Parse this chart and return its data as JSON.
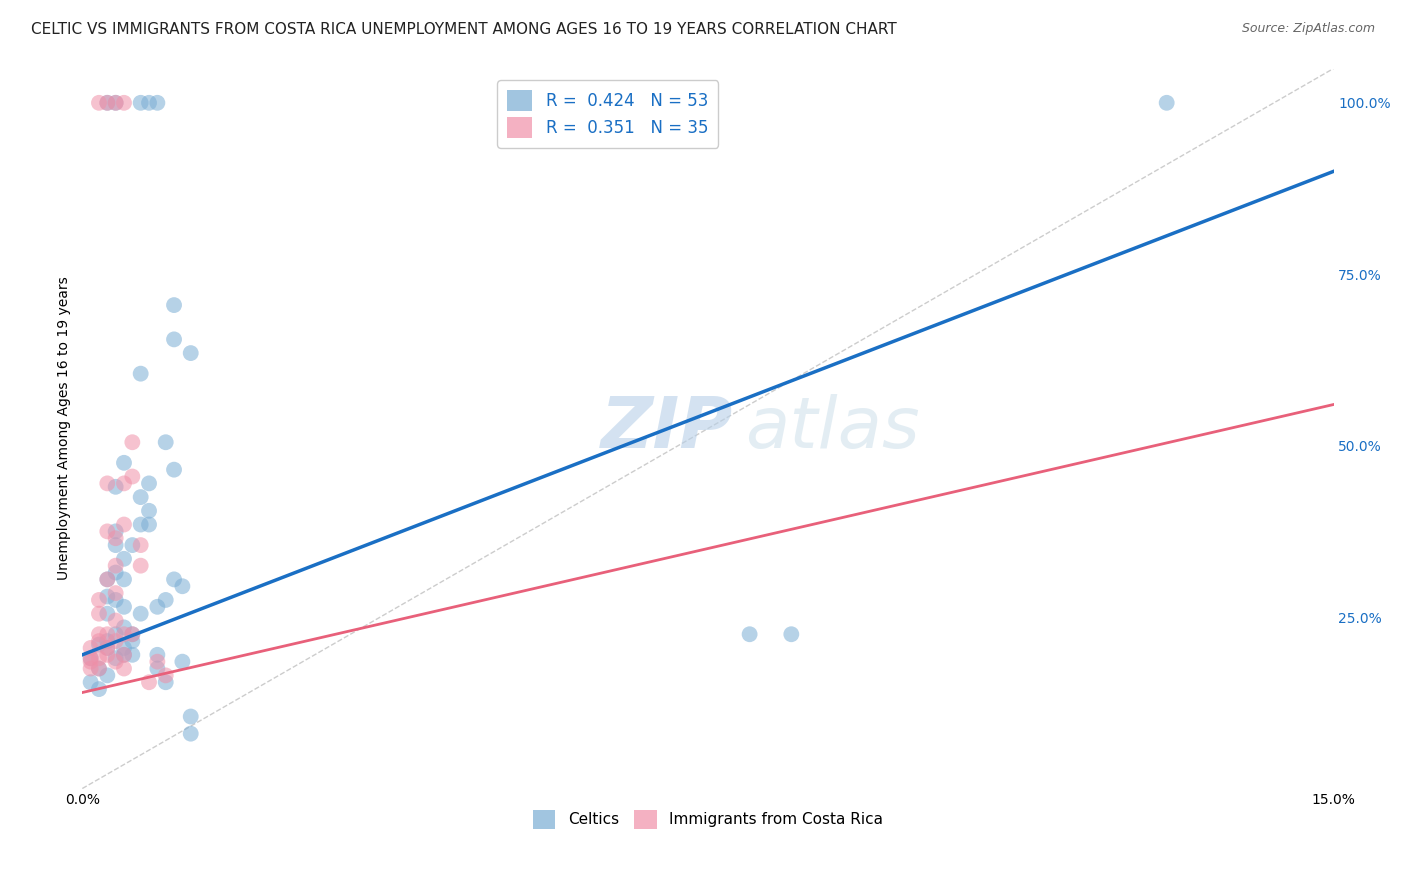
{
  "title": "CELTIC VS IMMIGRANTS FROM COSTA RICA UNEMPLOYMENT AMONG AGES 16 TO 19 YEARS CORRELATION CHART",
  "source": "Source: ZipAtlas.com",
  "ylabel": "Unemployment Among Ages 16 to 19 years",
  "xmin": 0.0,
  "xmax": 0.15,
  "ymin": 0.0,
  "ymax": 1.05,
  "ytick_labels": [
    "25.0%",
    "50.0%",
    "75.0%",
    "100.0%"
  ],
  "ytick_values": [
    0.25,
    0.5,
    0.75,
    1.0
  ],
  "watermark_zip": "ZIP",
  "watermark_atlas": "atlas",
  "celtics_color": "#7aadd4",
  "immigrants_color": "#f090a8",
  "trendline_celtics_color": "#1a6fc4",
  "trendline_immigrants_color": "#e8607a",
  "diagonal_color": "#c0c0c0",
  "celtics_R": 0.424,
  "celtics_N": 53,
  "immigrants_R": 0.351,
  "immigrants_N": 35,
  "grid_color": "#d8d8d8",
  "background_color": "#ffffff",
  "title_fontsize": 11,
  "axis_label_fontsize": 10,
  "tick_fontsize": 10,
  "legend_fontsize": 12,
  "right_ytick_color": "#1a6fc4",
  "celtics_trend_x0": 0.0,
  "celtics_trend_y0": 0.195,
  "celtics_trend_x1": 0.15,
  "celtics_trend_y1": 0.9,
  "immigrants_trend_x0": 0.0,
  "immigrants_trend_y0": 0.14,
  "immigrants_trend_x1": 0.15,
  "immigrants_trend_y1": 0.56,
  "celtics_points": [
    [
      0.001,
      0.19
    ],
    [
      0.002,
      0.21
    ],
    [
      0.002,
      0.175
    ],
    [
      0.003,
      0.205
    ],
    [
      0.003,
      0.215
    ],
    [
      0.003,
      0.255
    ],
    [
      0.003,
      0.28
    ],
    [
      0.003,
      0.305
    ],
    [
      0.004,
      0.19
    ],
    [
      0.004,
      0.225
    ],
    [
      0.004,
      0.275
    ],
    [
      0.004,
      0.315
    ],
    [
      0.004,
      0.355
    ],
    [
      0.004,
      0.375
    ],
    [
      0.004,
      0.44
    ],
    [
      0.005,
      0.195
    ],
    [
      0.005,
      0.205
    ],
    [
      0.005,
      0.235
    ],
    [
      0.005,
      0.265
    ],
    [
      0.005,
      0.305
    ],
    [
      0.005,
      0.335
    ],
    [
      0.005,
      0.475
    ],
    [
      0.006,
      0.195
    ],
    [
      0.006,
      0.215
    ],
    [
      0.006,
      0.225
    ],
    [
      0.006,
      0.355
    ],
    [
      0.007,
      0.255
    ],
    [
      0.007,
      0.385
    ],
    [
      0.007,
      0.425
    ],
    [
      0.007,
      0.605
    ],
    [
      0.008,
      0.385
    ],
    [
      0.008,
      0.405
    ],
    [
      0.008,
      0.445
    ],
    [
      0.009,
      0.175
    ],
    [
      0.009,
      0.195
    ],
    [
      0.009,
      0.265
    ],
    [
      0.01,
      0.155
    ],
    [
      0.01,
      0.275
    ],
    [
      0.01,
      0.505
    ],
    [
      0.011,
      0.305
    ],
    [
      0.011,
      0.465
    ],
    [
      0.011,
      0.655
    ],
    [
      0.011,
      0.705
    ],
    [
      0.012,
      0.185
    ],
    [
      0.012,
      0.295
    ],
    [
      0.013,
      0.635
    ],
    [
      0.08,
      0.225
    ],
    [
      0.085,
      0.225
    ],
    [
      0.001,
      0.155
    ],
    [
      0.002,
      0.145
    ],
    [
      0.003,
      0.165
    ],
    [
      0.013,
      0.105
    ],
    [
      0.013,
      0.08
    ]
  ],
  "celtics_top_points": [
    [
      0.003,
      1.0
    ],
    [
      0.004,
      1.0
    ],
    [
      0.007,
      1.0
    ],
    [
      0.008,
      1.0
    ],
    [
      0.009,
      1.0
    ],
    [
      0.13,
      1.0
    ]
  ],
  "immigrants_points": [
    [
      0.001,
      0.175
    ],
    [
      0.001,
      0.185
    ],
    [
      0.001,
      0.19
    ],
    [
      0.001,
      0.205
    ],
    [
      0.002,
      0.175
    ],
    [
      0.002,
      0.19
    ],
    [
      0.002,
      0.215
    ],
    [
      0.002,
      0.225
    ],
    [
      0.002,
      0.255
    ],
    [
      0.002,
      0.275
    ],
    [
      0.003,
      0.195
    ],
    [
      0.003,
      0.205
    ],
    [
      0.003,
      0.225
    ],
    [
      0.003,
      0.305
    ],
    [
      0.003,
      0.375
    ],
    [
      0.003,
      0.445
    ],
    [
      0.004,
      0.185
    ],
    [
      0.004,
      0.215
    ],
    [
      0.004,
      0.245
    ],
    [
      0.004,
      0.285
    ],
    [
      0.004,
      0.325
    ],
    [
      0.004,
      0.365
    ],
    [
      0.005,
      0.175
    ],
    [
      0.005,
      0.195
    ],
    [
      0.005,
      0.225
    ],
    [
      0.005,
      0.385
    ],
    [
      0.005,
      0.445
    ],
    [
      0.006,
      0.225
    ],
    [
      0.006,
      0.455
    ],
    [
      0.006,
      0.505
    ],
    [
      0.007,
      0.325
    ],
    [
      0.007,
      0.355
    ],
    [
      0.008,
      0.155
    ],
    [
      0.009,
      0.185
    ],
    [
      0.01,
      0.165
    ]
  ],
  "immigrants_top_points": [
    [
      0.002,
      1.0
    ],
    [
      0.003,
      1.0
    ],
    [
      0.004,
      1.0
    ],
    [
      0.005,
      1.0
    ]
  ]
}
